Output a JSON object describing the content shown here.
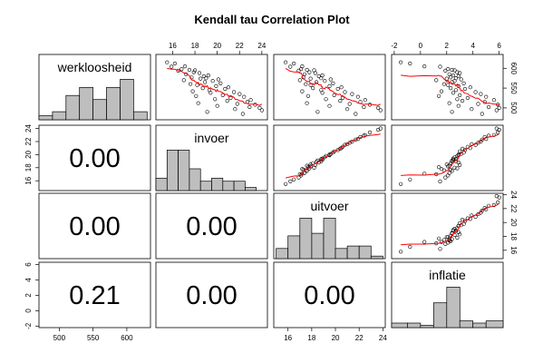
{
  "chart_data": {
    "type": "scatter-matrix",
    "title": "Kendall tau Correlation Plot",
    "variables": [
      {
        "name": "werkloosheid",
        "range": [
          470,
          635
        ],
        "ticks": [
          500,
          550,
          600
        ]
      },
      {
        "name": "invoer",
        "range": [
          14.5,
          24.5
        ],
        "ticks": [
          16,
          18,
          20,
          22,
          24
        ]
      },
      {
        "name": "uitvoer",
        "range": [
          14.8,
          24.2
        ],
        "ticks": [
          16,
          18,
          20,
          22,
          24
        ]
      },
      {
        "name": "inflatie",
        "range": [
          -2.2,
          6.3
        ],
        "ticks": [
          -2,
          0,
          2,
          4,
          6
        ]
      }
    ],
    "correlations": [
      {
        "row": 1,
        "col": 0,
        "label": "0.00"
      },
      {
        "row": 2,
        "col": 0,
        "label": "0.00"
      },
      {
        "row": 2,
        "col": 1,
        "label": "0.00"
      },
      {
        "row": 3,
        "col": 0,
        "label": "0.21"
      },
      {
        "row": 3,
        "col": 1,
        "label": "0.00"
      },
      {
        "row": 3,
        "col": 2,
        "label": "0.00"
      }
    ],
    "histograms": [
      {
        "var": 0,
        "bins": [
          470,
          490,
          510,
          530,
          550,
          570,
          590,
          610,
          630
        ],
        "counts": [
          1,
          2,
          6,
          8,
          5,
          8,
          10,
          2,
          3
        ]
      },
      {
        "var": 1,
        "bins": [
          14.5,
          15.5,
          16.5,
          17.5,
          18.5,
          19.5,
          20.5,
          21.5,
          22.5,
          23.5,
          24.5
        ],
        "counts": [
          4,
          13,
          13,
          7,
          3,
          4,
          3,
          3,
          1,
          0
        ]
      },
      {
        "var": 2,
        "bins": [
          15,
          16,
          17,
          18,
          19,
          20,
          21,
          22,
          23,
          24
        ],
        "counts": [
          4,
          9,
          16,
          10,
          16,
          4,
          5,
          5,
          1
        ]
      },
      {
        "var": 3,
        "bins": [
          -2.2,
          -1,
          0,
          1,
          2,
          3,
          4,
          5,
          6.3
        ],
        "counts": [
          2,
          2,
          1,
          11,
          18,
          3,
          2,
          3
        ]
      }
    ],
    "series": [
      {
        "name": "werkloosheid",
        "values": [
          615,
          612,
          605,
          604,
          598,
          596,
          595,
          594,
          590,
          588,
          585,
          582,
          580,
          577,
          575,
          574,
          572,
          570,
          568,
          565,
          562,
          560,
          558,
          555,
          552,
          550,
          548,
          545,
          542,
          540,
          538,
          535,
          532,
          530,
          528,
          525,
          522,
          520,
          518,
          515,
          512,
          510,
          508,
          505,
          502,
          500,
          497,
          494,
          490,
          485
        ]
      },
      {
        "name": "invoer",
        "values": [
          15.5,
          16.2,
          17.1,
          15.9,
          16.8,
          17.5,
          18.0,
          16.5,
          17.9,
          18.4,
          17.2,
          19.2,
          18.8,
          17.7,
          19.0,
          18.5,
          20.1,
          17.0,
          19.6,
          18.9,
          20.3,
          17.6,
          18.2,
          19.9,
          21.0,
          18.7,
          20.7,
          19.3,
          17.8,
          21.5,
          19.4,
          22.0,
          20.5,
          18.1,
          22.4,
          21.2,
          19.8,
          23.0,
          20.9,
          22.7,
          18.3,
          21.8,
          23.4,
          20.0,
          22.9,
          23.8,
          21.6,
          24.0,
          19.1,
          22.3
        ]
      },
      {
        "name": "uitvoer",
        "values": [
          15.8,
          16.5,
          17.2,
          16.2,
          17.1,
          17.6,
          18.2,
          16.9,
          17.8,
          18.3,
          17.4,
          18.9,
          18.6,
          17.3,
          18.8,
          17.9,
          19.6,
          17.0,
          19.1,
          18.4,
          19.8,
          17.5,
          17.9,
          19.5,
          20.5,
          18.1,
          20.2,
          18.8,
          17.2,
          20.8,
          18.9,
          21.4,
          19.9,
          17.7,
          21.9,
          20.6,
          19.2,
          22.5,
          20.4,
          22.1,
          17.6,
          21.2,
          22.9,
          19.5,
          22.4,
          23.6,
          21.0,
          23.8,
          18.5,
          21.7
        ]
      },
      {
        "name": "inflatie",
        "values": [
          -1.5,
          -0.8,
          0.3,
          1.5,
          2.1,
          2.4,
          2.6,
          1.9,
          2.8,
          3.0,
          2.2,
          2.5,
          2.9,
          2.3,
          2.7,
          2.0,
          3.1,
          1.2,
          2.6,
          2.4,
          3.3,
          1.8,
          2.1,
          2.9,
          3.8,
          2.3,
          3.4,
          2.7,
          1.6,
          4.2,
          2.5,
          4.6,
          3.0,
          1.4,
          5.0,
          3.6,
          2.8,
          5.6,
          3.2,
          4.9,
          2.2,
          4.4,
          5.9,
          2.9,
          5.2,
          6.0,
          3.9,
          5.8,
          2.4,
          4.7
        ]
      }
    ],
    "smoother": "red lowess line"
  }
}
